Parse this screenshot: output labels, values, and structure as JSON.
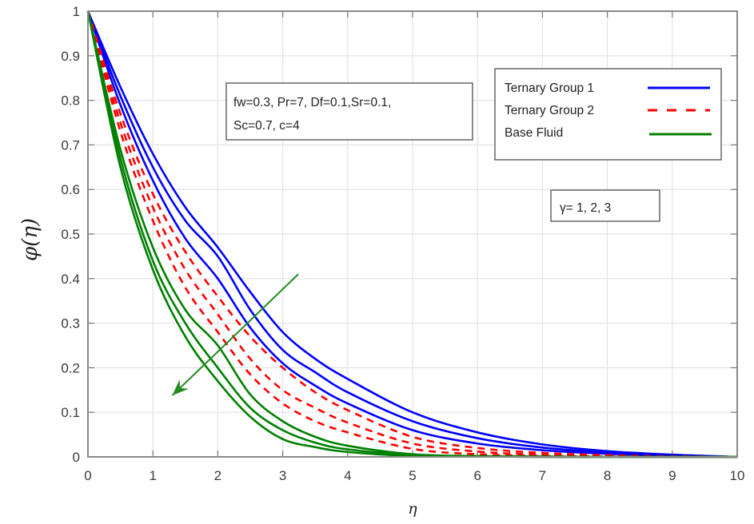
{
  "chart_data": {
    "type": "line",
    "title": "",
    "xlabel": "η",
    "ylabel": "φ(η)",
    "xlim": [
      0,
      10
    ],
    "ylim": [
      0,
      1
    ],
    "grid": true,
    "xticks": [
      "0",
      "1",
      "2",
      "3",
      "4",
      "5",
      "6",
      "7",
      "8",
      "9",
      "10"
    ],
    "yticks": [
      "0",
      "0.1",
      "0.2",
      "0.3",
      "0.4",
      "0.5",
      "0.6",
      "0.7",
      "0.8",
      "0.9",
      "1"
    ],
    "x": [
      0,
      0.5,
      1,
      1.5,
      2,
      2.5,
      3,
      3.5,
      4,
      5,
      6,
      7,
      8,
      9,
      10
    ],
    "series": [
      {
        "name": "Ternary Group 1",
        "group": "Ternary Group 1",
        "gamma": 1,
        "color": "#0000ff",
        "style": "solid",
        "values": [
          1,
          0.83,
          0.68,
          0.56,
          0.47,
          0.37,
          0.28,
          0.22,
          0.175,
          0.1,
          0.055,
          0.028,
          0.013,
          0.005,
          0
        ]
      },
      {
        "name": "Ternary Group 1",
        "group": "Ternary Group 1",
        "gamma": 2,
        "color": "#0000ff",
        "style": "solid",
        "values": [
          1,
          0.81,
          0.65,
          0.53,
          0.45,
          0.33,
          0.24,
          0.19,
          0.145,
          0.08,
          0.042,
          0.021,
          0.01,
          0.004,
          0
        ]
      },
      {
        "name": "Ternary Group 1",
        "group": "Ternary Group 1",
        "gamma": 3,
        "color": "#0000ff",
        "style": "solid",
        "values": [
          1,
          0.79,
          0.62,
          0.49,
          0.4,
          0.29,
          0.21,
          0.16,
          0.12,
          0.06,
          0.03,
          0.015,
          0.007,
          0.003,
          0
        ]
      },
      {
        "name": "Ternary Group 2",
        "group": "Ternary Group 2",
        "gamma": 1,
        "color": "#ff0000",
        "style": "dashed",
        "values": [
          1,
          0.77,
          0.59,
          0.46,
          0.36,
          0.27,
          0.2,
          0.145,
          0.105,
          0.045,
          0.02,
          0.009,
          0.004,
          0.001,
          0
        ]
      },
      {
        "name": "Ternary Group 2",
        "group": "Ternary Group 2",
        "gamma": 2,
        "color": "#ff0000",
        "style": "dashed",
        "values": [
          1,
          0.75,
          0.56,
          0.42,
          0.32,
          0.22,
          0.15,
          0.11,
          0.077,
          0.03,
          0.012,
          0.005,
          0.002,
          0.001,
          0
        ]
      },
      {
        "name": "Ternary Group 2",
        "group": "Ternary Group 2",
        "gamma": 3,
        "color": "#ff0000",
        "style": "dashed",
        "values": [
          1,
          0.73,
          0.53,
          0.38,
          0.28,
          0.185,
          0.12,
          0.08,
          0.055,
          0.018,
          0.006,
          0.002,
          0.001,
          0,
          0
        ]
      },
      {
        "name": "Base Fluid",
        "group": "Base Fluid",
        "gamma": 1,
        "color": "#008000",
        "style": "solid",
        "values": [
          1,
          0.69,
          0.47,
          0.33,
          0.25,
          0.14,
          0.08,
          0.045,
          0.025,
          0.006,
          0.002,
          0.001,
          0,
          0,
          0
        ]
      },
      {
        "name": "Base Fluid",
        "group": "Base Fluid",
        "gamma": 2,
        "color": "#008000",
        "style": "solid",
        "values": [
          1,
          0.67,
          0.44,
          0.3,
          0.2,
          0.11,
          0.06,
          0.032,
          0.017,
          0.004,
          0.001,
          0,
          0,
          0,
          0
        ]
      },
      {
        "name": "Base Fluid",
        "group": "Base Fluid",
        "gamma": 3,
        "color": "#008000",
        "style": "solid",
        "values": [
          1,
          0.65,
          0.42,
          0.27,
          0.17,
          0.09,
          0.04,
          0.022,
          0.011,
          0.002,
          0.001,
          0,
          0,
          0,
          0
        ]
      }
    ],
    "legend": {
      "position": "upper right",
      "entries": [
        {
          "label": "Ternary Group 1",
          "color": "#0000ff",
          "style": "solid"
        },
        {
          "label": "Ternary Group 2",
          "color": "#ff0000",
          "style": "dashed"
        },
        {
          "label": "Base Fluid",
          "color": "#008000",
          "style": "solid"
        }
      ]
    },
    "annotations": [
      {
        "type": "textbox",
        "lines": [
          "fw=0.3, Pr=7, Df=0.1,Sr=0.1,",
          "Sc=0.7, c=4"
        ]
      },
      {
        "type": "textbox",
        "lines": [
          "γ= 1, 2, 3"
        ]
      },
      {
        "type": "arrow",
        "color": "#228b22",
        "from": [
          3.24,
          0.41
        ],
        "to": [
          1.3,
          0.138
        ],
        "meaning": "increasing γ"
      }
    ]
  },
  "parameters_box": {
    "line1": "fw=0.3, Pr=7, Df=0.1,Sr=0.1,",
    "line2": "Sc=0.7, c=4"
  },
  "gamma_box": {
    "text": "γ= 1, 2, 3"
  },
  "axes": {
    "xlabel": "η",
    "ylabel": "φ(η)"
  }
}
